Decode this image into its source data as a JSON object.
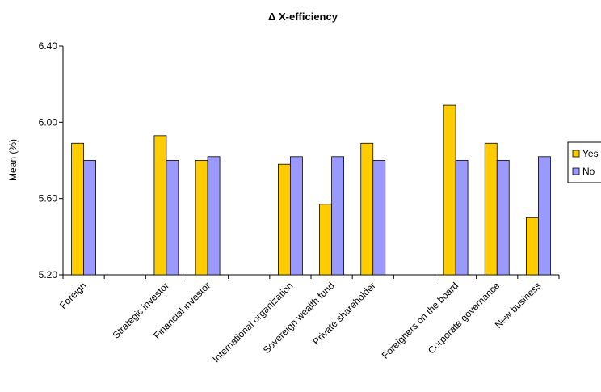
{
  "chart_data": {
    "type": "bar",
    "title": "Δ X-efficiency",
    "ylabel": "Mean (%)",
    "xlabel": "",
    "ylim": [
      5.2,
      6.4
    ],
    "yticks": [
      "5.20",
      "5.60",
      "6.00",
      "6.40"
    ],
    "ytick_values": [
      5.2,
      5.6,
      6.0,
      6.4
    ],
    "grid": false,
    "legend_position": "right",
    "categories": [
      "Foreign",
      "",
      "Strategic investor",
      "Financial investor",
      "",
      "International organization",
      "Sovereign wealth fund",
      "Private shareholder",
      "",
      "Foreigners on the board",
      "Corporate governance",
      "New business"
    ],
    "series": [
      {
        "name": "Yes",
        "color": "#FFCC00",
        "values": [
          5.89,
          null,
          5.93,
          5.8,
          null,
          5.78,
          5.57,
          5.89,
          null,
          6.09,
          5.89,
          5.5
        ]
      },
      {
        "name": "No",
        "color": "#9999FF",
        "values": [
          5.8,
          null,
          5.8,
          5.82,
          null,
          5.82,
          5.82,
          5.8,
          null,
          5.8,
          5.8,
          5.82
        ]
      }
    ]
  }
}
